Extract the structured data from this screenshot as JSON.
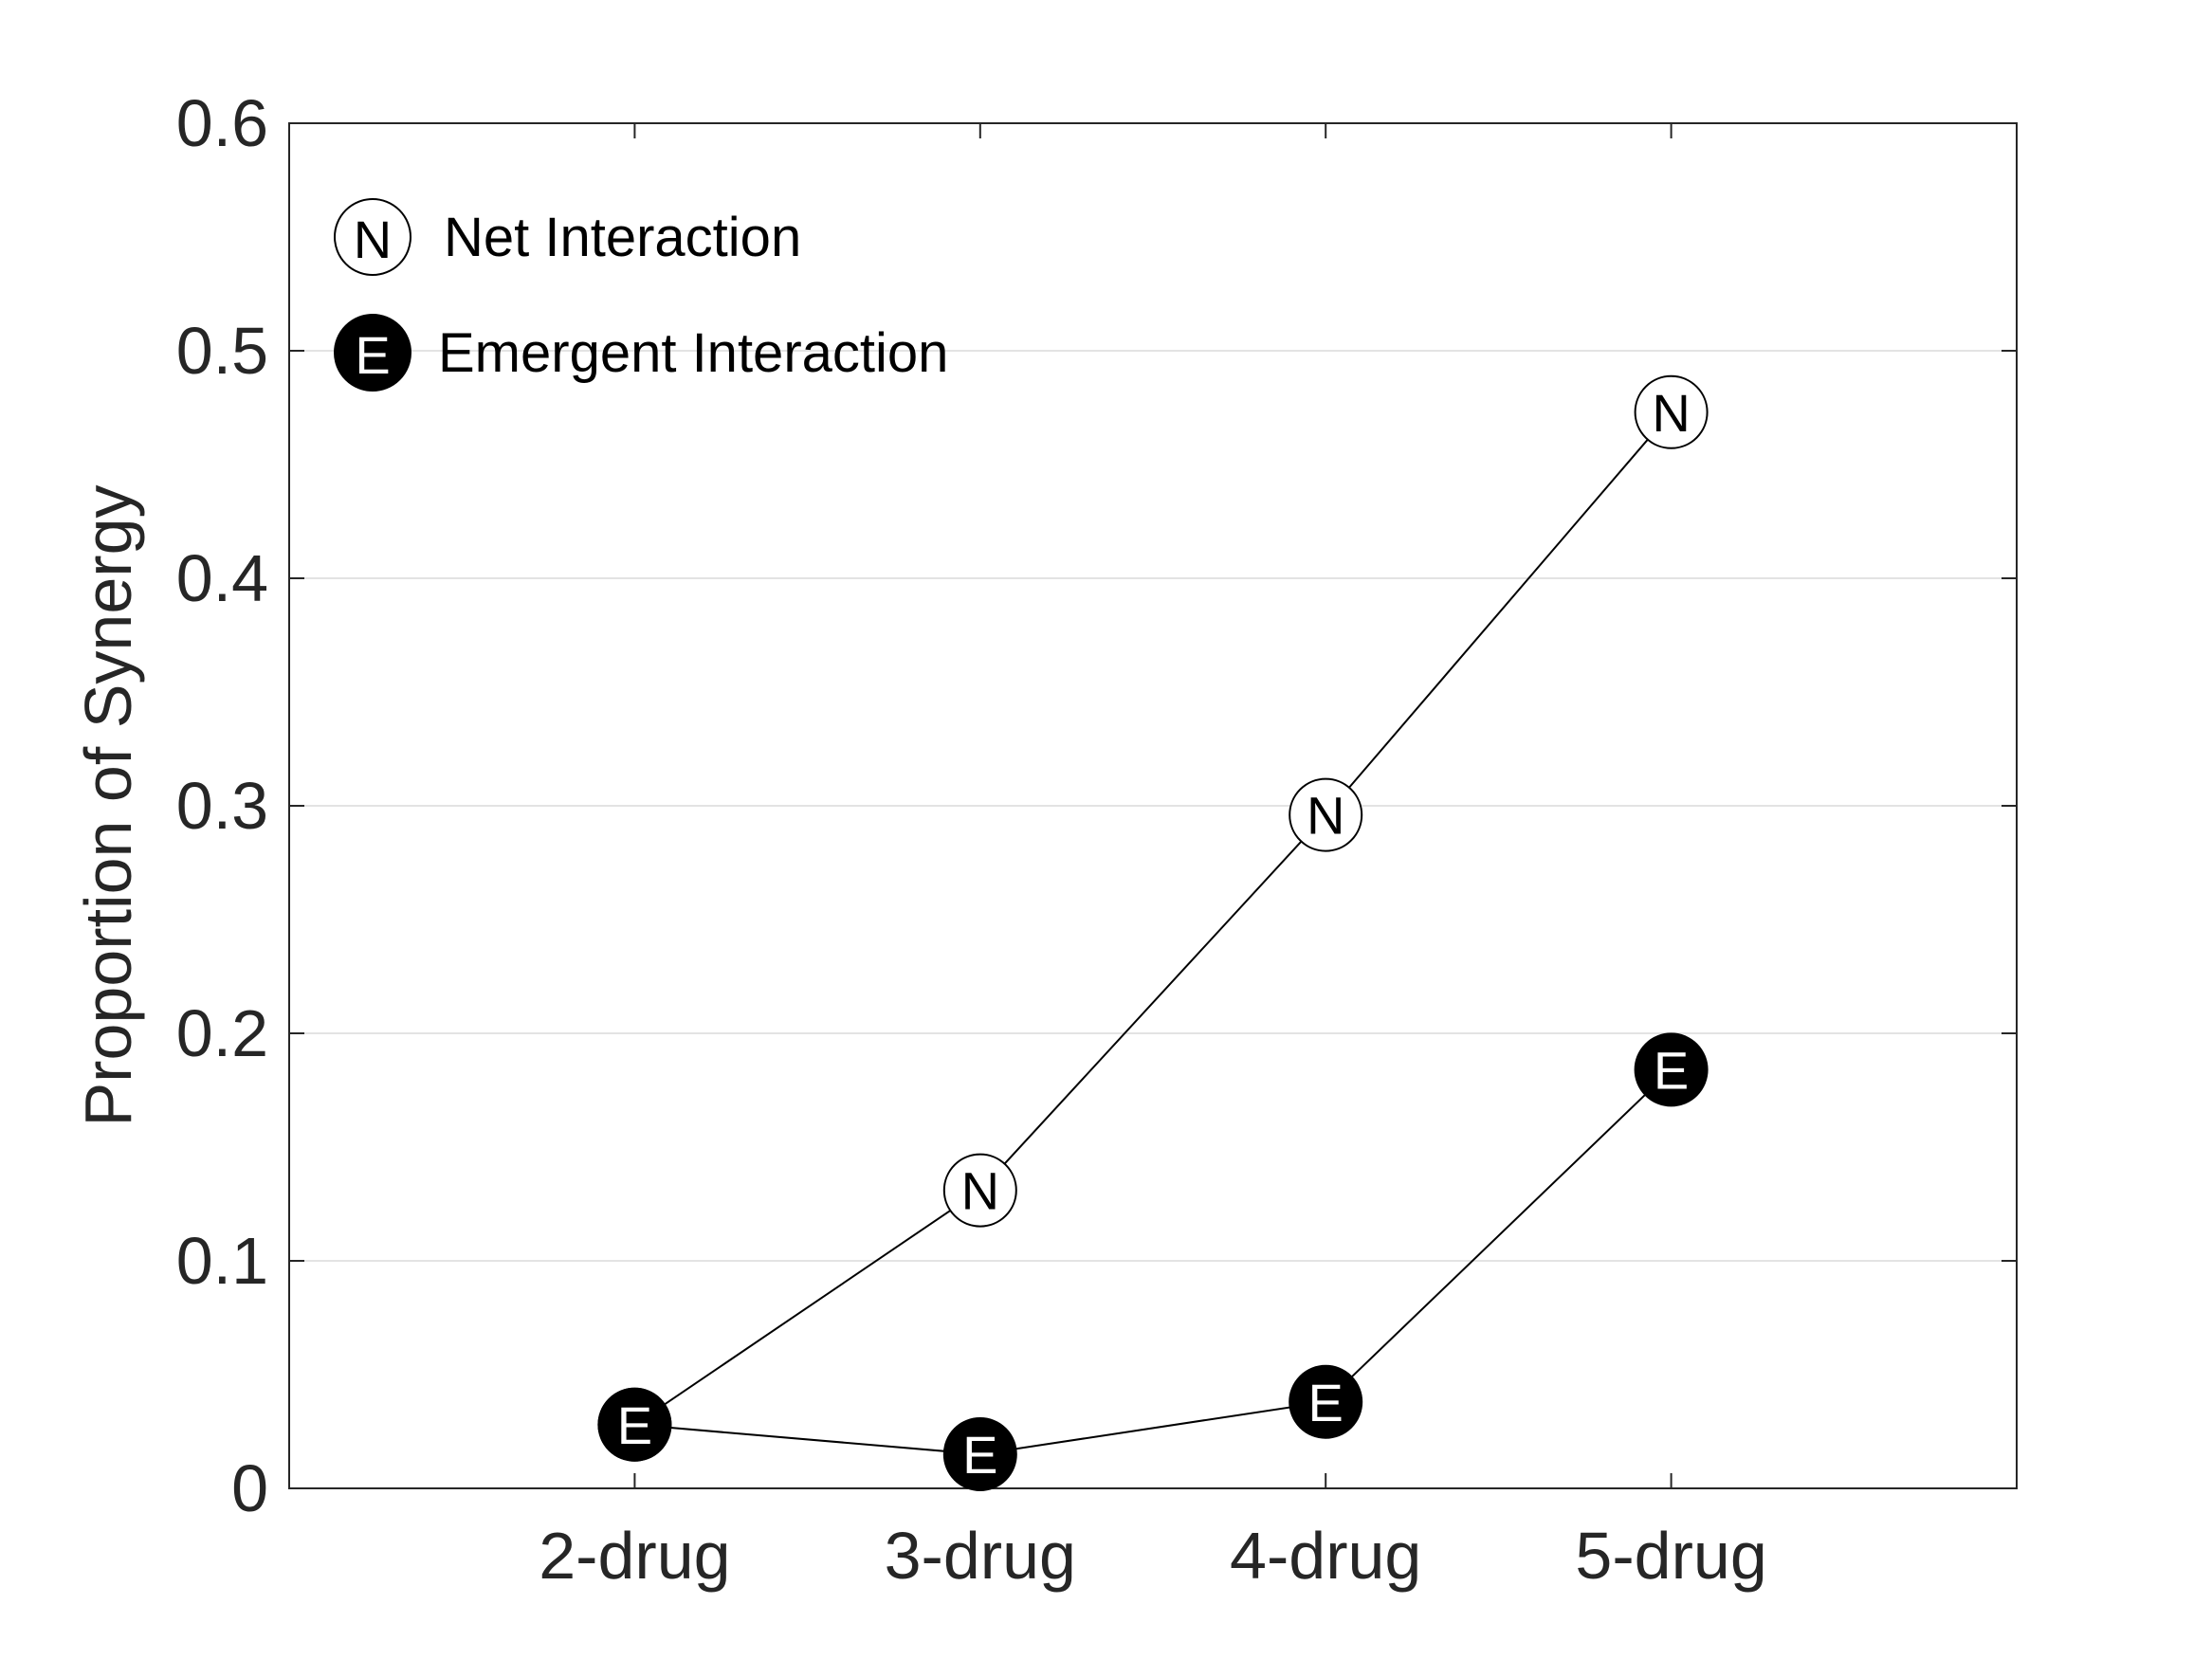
{
  "chart_data": {
    "type": "line",
    "categories": [
      "2-drug",
      "3-drug",
      "4-drug",
      "5-drug"
    ],
    "ylabel": "Proportion of Synergy",
    "xlabel": "",
    "ylim": [
      0,
      0.6
    ],
    "yticks": [
      "0",
      "0.1",
      "0.2",
      "0.3",
      "0.4",
      "0.5",
      "0.6"
    ],
    "x_slots": 5,
    "grid": "horizontal",
    "legend_position": "top-left",
    "series": [
      {
        "name": "Net Interaction",
        "marker_letter": "N",
        "marker_fill": "#ffffff",
        "letter_color": "#000000",
        "values": [
          0.028,
          0.131,
          0.296,
          0.473
        ]
      },
      {
        "name": "Emergent Interaction",
        "marker_letter": "E",
        "marker_fill": "#000000",
        "letter_color": "#ffffff",
        "values": [
          0.028,
          0.015,
          0.038,
          0.184
        ]
      }
    ],
    "colors": {
      "axis": "#262626",
      "grid": "#e3e3e3",
      "line": "#000000"
    }
  }
}
